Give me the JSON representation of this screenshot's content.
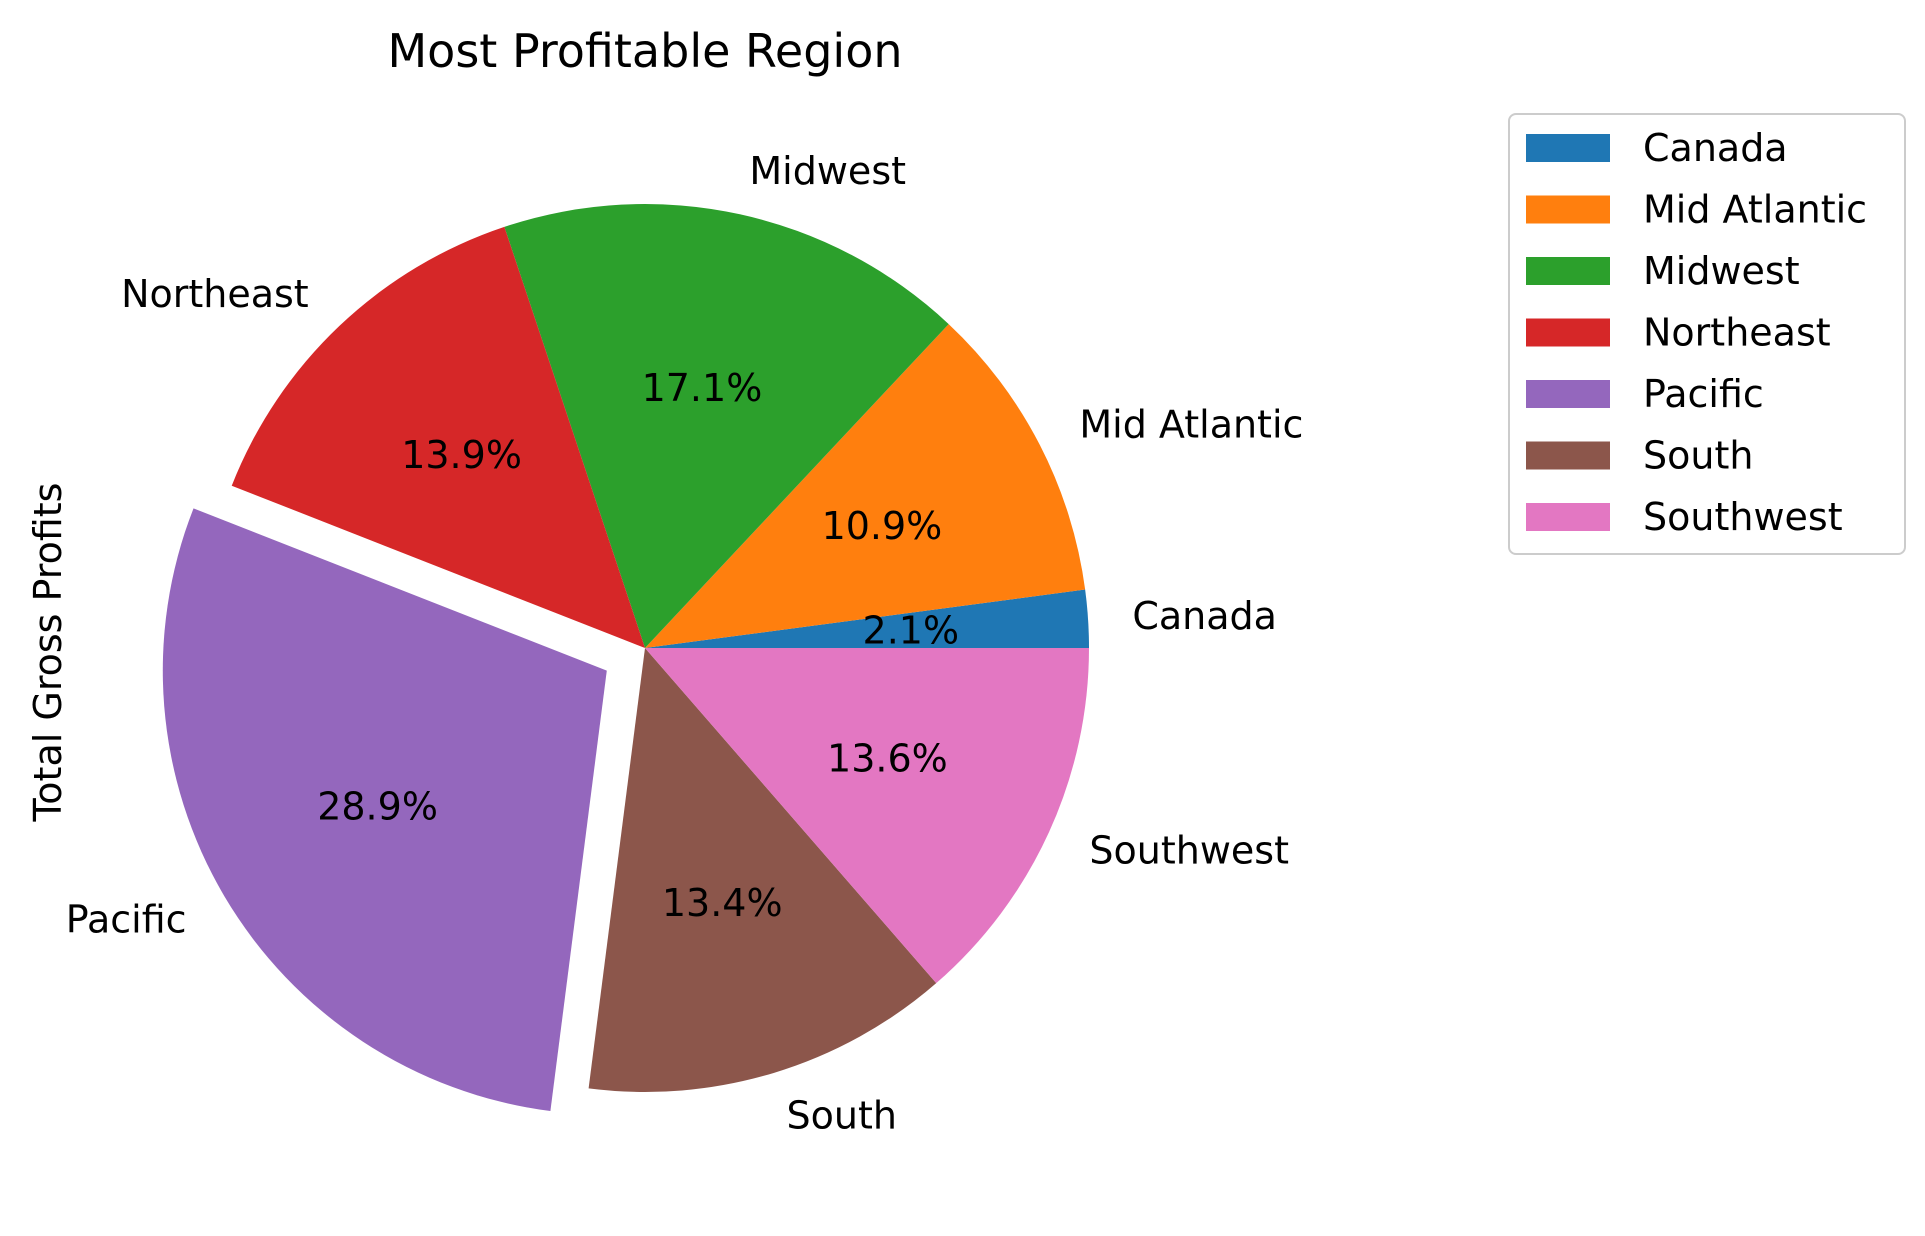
{
  "chart_data": {
    "type": "pie",
    "title": "Most Profitable Region",
    "ylabel": "Total Gross Profits",
    "legend_placement": "upper-right-outside",
    "start_angle_deg": 0,
    "direction": "counterclockwise",
    "slices": [
      {
        "name": "Canada",
        "percent": 2.1,
        "label": "2.1%",
        "color": "#1f77b4",
        "explode": false
      },
      {
        "name": "Mid Atlantic",
        "percent": 10.9,
        "label": "10.9%",
        "color": "#ff7f0e",
        "explode": false
      },
      {
        "name": "Midwest",
        "percent": 17.1,
        "label": "17.1%",
        "color": "#2ca02c",
        "explode": false
      },
      {
        "name": "Northeast",
        "percent": 13.9,
        "label": "13.9%",
        "color": "#d62728",
        "explode": false
      },
      {
        "name": "Pacific",
        "percent": 28.9,
        "label": "28.9%",
        "color": "#9467bd",
        "explode": true
      },
      {
        "name": "South",
        "percent": 13.4,
        "label": "13.4%",
        "color": "#8c564b",
        "explode": false
      },
      {
        "name": "Southwest",
        "percent": 13.6,
        "label": "13.6%",
        "color": "#e377c2",
        "explode": false
      }
    ]
  }
}
